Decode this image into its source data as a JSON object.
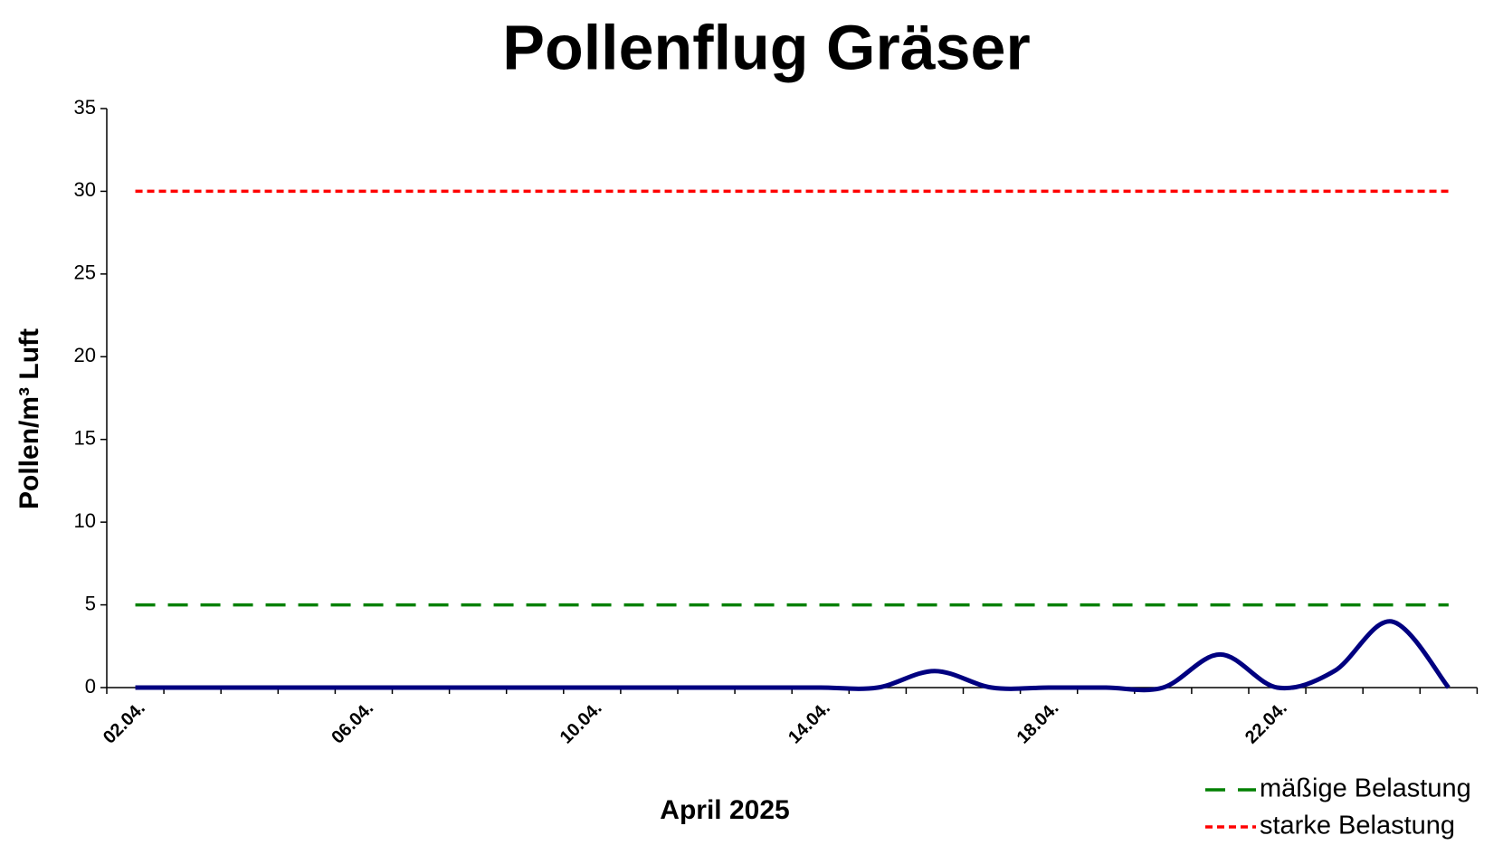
{
  "chart_data": {
    "type": "line",
    "title": "Pollenflug Gräser",
    "x_label": "April 2025",
    "y_label": "Pollen/m³ Luft",
    "categories": [
      "02.04.",
      null,
      null,
      null,
      "06.04.",
      null,
      null,
      null,
      "10.04.",
      null,
      null,
      null,
      "14.04.",
      null,
      null,
      null,
      "18.04.",
      null,
      null,
      null,
      "22.04.",
      null,
      null,
      null
    ],
    "series": [
      {
        "color": "#000080",
        "style": "solid",
        "smooth": true,
        "values": [
          0,
          0,
          0,
          0,
          0,
          0,
          0,
          0,
          0,
          0,
          0,
          0,
          0,
          0,
          1,
          0,
          0,
          0,
          0,
          2,
          0,
          1,
          4,
          0
        ]
      },
      {
        "name": "mäßige Belastung",
        "color": "#008000",
        "style": "dashed",
        "values": [
          5,
          5,
          5,
          5,
          5,
          5,
          5,
          5,
          5,
          5,
          5,
          5,
          5,
          5,
          5,
          5,
          5,
          5,
          5,
          5,
          5,
          5,
          5,
          5
        ]
      },
      {
        "name": "starke Belastung",
        "color": "#ff0000",
        "style": "dotted",
        "values": [
          30,
          30,
          30,
          30,
          30,
          30,
          30,
          30,
          30,
          30,
          30,
          30,
          30,
          30,
          30,
          30,
          30,
          30,
          30,
          30,
          30,
          30,
          30,
          30
        ]
      }
    ],
    "ylim": [
      0,
      35
    ],
    "yticks": [
      0,
      5,
      10,
      15,
      20,
      25,
      30,
      35
    ],
    "grid": false,
    "legend": "bottom-right"
  }
}
